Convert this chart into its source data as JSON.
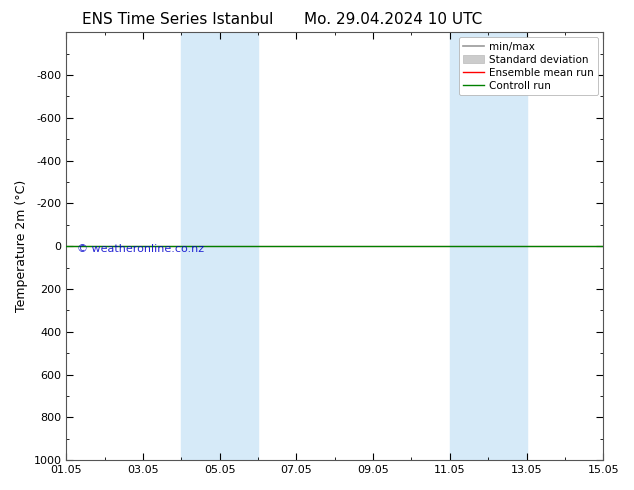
{
  "title_left": "ENS Time Series Istanbul",
  "title_right": "Mo. 29.04.2024 10 UTC",
  "ylabel": "Temperature 2m (°C)",
  "watermark": "© weatheronline.co.nz",
  "ylim_bottom": 1000,
  "ylim_top": -1000,
  "yticks": [
    -800,
    -600,
    -400,
    -200,
    0,
    200,
    400,
    600,
    800,
    1000
  ],
  "xmin": 0,
  "xmax": 14,
  "xtick_labels": [
    "01.05",
    "03.05",
    "05.05",
    "07.05",
    "09.05",
    "11.05",
    "13.05",
    "15.05"
  ],
  "xtick_positions": [
    0,
    2,
    4,
    6,
    8,
    10,
    12,
    14
  ],
  "shaded_regions": [
    [
      3.0,
      4.0
    ],
    [
      4.0,
      5.0
    ],
    [
      10.0,
      11.0
    ],
    [
      11.0,
      12.0
    ]
  ],
  "shade_color": "#d6eaf8",
  "control_run_y": 0,
  "ensemble_mean_y": 0,
  "control_run_color": "#008000",
  "ensemble_mean_color": "#ff0000",
  "minmax_color": "#999999",
  "stddev_color": "#cccccc",
  "background_color": "#ffffff",
  "legend_entries": [
    "min/max",
    "Standard deviation",
    "Ensemble mean run",
    "Controll run"
  ],
  "title_fontsize": 11,
  "tick_fontsize": 8,
  "ylabel_fontsize": 9,
  "watermark_color": "#0000cc"
}
